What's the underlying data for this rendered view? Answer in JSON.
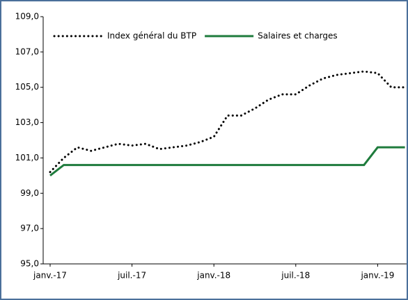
{
  "chart_data": {
    "type": "line",
    "categories": [
      "janv.-17",
      null,
      null,
      null,
      null,
      null,
      "juil.-17",
      null,
      null,
      null,
      null,
      null,
      "janv.-18",
      null,
      null,
      null,
      null,
      null,
      "juil.-18",
      null,
      null,
      null,
      null,
      null,
      "janv.-19",
      null,
      null
    ],
    "series": [
      {
        "name": "Index général du BTP",
        "color": "#000000",
        "style": "dotted",
        "values": [
          100.2,
          101.0,
          101.6,
          101.4,
          101.6,
          101.8,
          101.7,
          101.8,
          101.5,
          101.6,
          101.7,
          101.9,
          102.2,
          103.4,
          103.4,
          103.8,
          104.3,
          104.6,
          104.6,
          105.1,
          105.5,
          105.7,
          105.8,
          105.9,
          105.8,
          105.0,
          105.0
        ]
      },
      {
        "name": "Salaires et charges",
        "color": "#1e7b3c",
        "style": "solid",
        "values": [
          100.0,
          100.6,
          100.6,
          100.6,
          100.6,
          100.6,
          100.6,
          100.6,
          100.6,
          100.6,
          100.6,
          100.6,
          100.6,
          100.6,
          100.6,
          100.6,
          100.6,
          100.6,
          100.6,
          100.6,
          100.6,
          100.6,
          100.6,
          100.6,
          101.6,
          101.6,
          101.6
        ]
      }
    ],
    "ylim": [
      95,
      109
    ],
    "yticks": [
      {
        "value": 95,
        "label": "95,0"
      },
      {
        "value": 97,
        "label": "97,0"
      },
      {
        "value": 99,
        "label": "99,0"
      },
      {
        "value": 101,
        "label": "101,0"
      },
      {
        "value": 103,
        "label": "103,0"
      },
      {
        "value": 105,
        "label": "105,0"
      },
      {
        "value": 107,
        "label": "107,0"
      },
      {
        "value": 109,
        "label": "109,0"
      }
    ],
    "grid": false,
    "legend": "top"
  }
}
